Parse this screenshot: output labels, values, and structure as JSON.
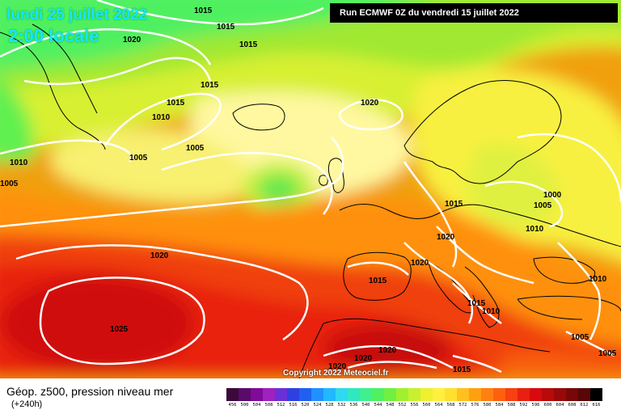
{
  "header": {
    "date": "lundi 25 juillet 2022",
    "time": "2:00 locale",
    "run": "Run ECMWF 0Z du vendredi 15 juillet 2022"
  },
  "copyright": "Copyright 2022 Meteociel.fr",
  "footer": {
    "parameter": "Géop. z500, pression niveau mer",
    "lead": "(+240h)"
  },
  "colors": {
    "text_accent": "#19e6ff",
    "isobar": "#ffffff",
    "coastline": "#000000"
  },
  "scale": {
    "labels": [
      "456",
      "500",
      "504",
      "508",
      "512",
      "516",
      "520",
      "524",
      "528",
      "532",
      "536",
      "540",
      "544",
      "548",
      "552",
      "556",
      "560",
      "564",
      "568",
      "572",
      "576",
      "580",
      "584",
      "588",
      "592",
      "596",
      "600",
      "604",
      "608",
      "612",
      "616"
    ],
    "colors": [
      "#3a0a3a",
      "#5a0a6a",
      "#800a9a",
      "#a020c0",
      "#6a30d8",
      "#3040e0",
      "#2060f0",
      "#2090ff",
      "#20b8ff",
      "#30d8f0",
      "#30e8c0",
      "#40f090",
      "#50f060",
      "#70f040",
      "#a0f030",
      "#c8f030",
      "#eef030",
      "#fff040",
      "#ffe030",
      "#ffc020",
      "#ffa010",
      "#ff8010",
      "#ff6010",
      "#f84010",
      "#e82010",
      "#d80a10",
      "#b80a0a",
      "#980a0a",
      "#780808",
      "#580606",
      "#000000"
    ]
  },
  "isobars": [
    {
      "value": "1015",
      "pos": "top-center"
    },
    {
      "value": "1015",
      "pos": "top-center-2"
    },
    {
      "value": "1015",
      "pos": "top-center-3"
    },
    {
      "value": "1020",
      "pos": "top-left"
    },
    {
      "value": "1015",
      "pos": "greenland-south"
    },
    {
      "value": "1015",
      "pos": "greenland-sw"
    },
    {
      "value": "1010",
      "pos": "labrador"
    },
    {
      "value": "1005",
      "pos": "atlantic-west"
    },
    {
      "value": "1005",
      "pos": "atlantic-mid"
    },
    {
      "value": "1010",
      "pos": "west-edge"
    },
    {
      "value": "1005",
      "pos": "west-edge-2"
    },
    {
      "value": "1020",
      "pos": "north-sea"
    },
    {
      "value": "1020",
      "pos": "atlantic-south"
    },
    {
      "value": "1015",
      "pos": "central-europe"
    },
    {
      "value": "1020",
      "pos": "france"
    },
    {
      "value": "1020",
      "pos": "iberia"
    },
    {
      "value": "1015",
      "pos": "mediterranean"
    },
    {
      "value": "1000",
      "pos": "russia"
    },
    {
      "value": "1005",
      "pos": "russia-2"
    },
    {
      "value": "1010",
      "pos": "ukraine"
    },
    {
      "value": "1010",
      "pos": "turkey"
    },
    {
      "value": "1015",
      "pos": "balkans"
    },
    {
      "value": "1010",
      "pos": "balkans-2"
    },
    {
      "value": "1025",
      "pos": "azores"
    },
    {
      "value": "1020",
      "pos": "north-africa"
    },
    {
      "value": "1020",
      "pos": "north-africa-2"
    },
    {
      "value": "1020",
      "pos": "north-africa-3"
    },
    {
      "value": "1015",
      "pos": "libya"
    },
    {
      "value": "1005",
      "pos": "middle-east"
    },
    {
      "value": "1005",
      "pos": "middle-east-2"
    }
  ]
}
